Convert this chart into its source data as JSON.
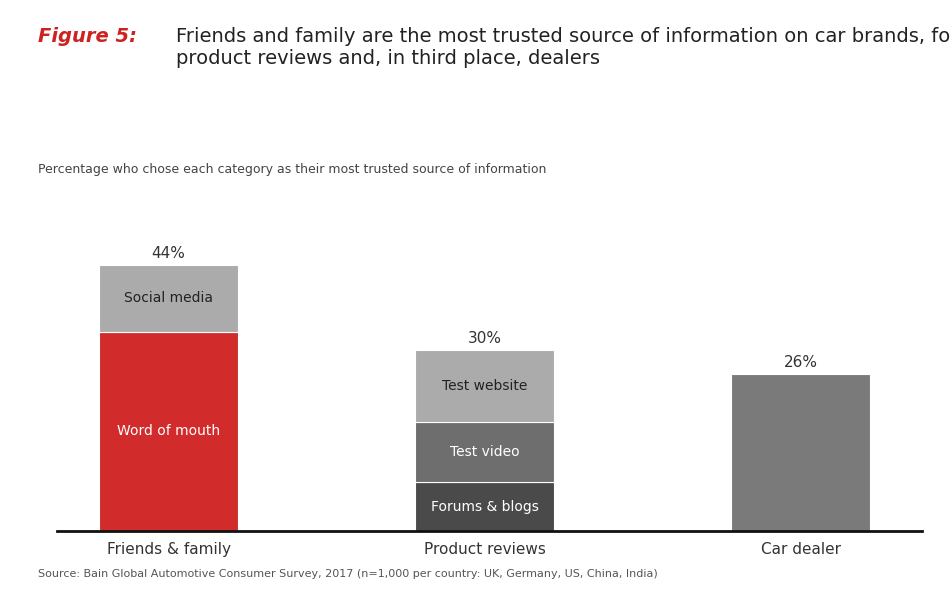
{
  "title_figure": "Figure 5:",
  "title_main": "Friends and family are the most trusted source of information on car brands, followed by\nproduct reviews and, in third place, dealers",
  "subtitle": "Percentage who chose each category as their most trusted source of information",
  "source": "Source: Bain Global Automotive Consumer Survey, 2017 (n=1,000 per country: UK, Germany, US, China, India)",
  "categories": [
    "Friends & family",
    "Product reviews",
    "Car dealer"
  ],
  "bars": [
    {
      "category": "Friends & family",
      "segments": [
        {
          "label": "Word of mouth",
          "value": 33,
          "color": "#D22B2B",
          "text_color": "white"
        },
        {
          "label": "Social media",
          "value": 11,
          "color": "#ABABAB",
          "text_color": "#222222"
        }
      ],
      "total": 44
    },
    {
      "category": "Product reviews",
      "segments": [
        {
          "label": "Forums & blogs",
          "value": 8,
          "color": "#4A4A4A",
          "text_color": "white"
        },
        {
          "label": "Test video",
          "value": 10,
          "color": "#6E6E6E",
          "text_color": "white"
        },
        {
          "label": "Test website",
          "value": 12,
          "color": "#ABABAB",
          "text_color": "#222222"
        }
      ],
      "total": 30
    },
    {
      "category": "Car dealer",
      "segments": [
        {
          "label": "",
          "value": 26,
          "color": "#7A7A7A",
          "text_color": "white"
        }
      ],
      "total": 26
    }
  ],
  "bar_width": 0.75,
  "bar_positions": [
    0.5,
    2.2,
    3.9
  ],
  "xlim": [
    -0.1,
    4.55
  ],
  "ylim": [
    0,
    52
  ],
  "bg_color": "#FFFFFF",
  "title_color_figure": "#CC2222",
  "title_color_main": "#222222",
  "subtitle_color": "#444444",
  "source_color": "#555555",
  "axis_bottom_color": "#111111",
  "total_label_fontsize": 11,
  "segment_label_fontsize": 10,
  "xtick_fontsize": 11
}
